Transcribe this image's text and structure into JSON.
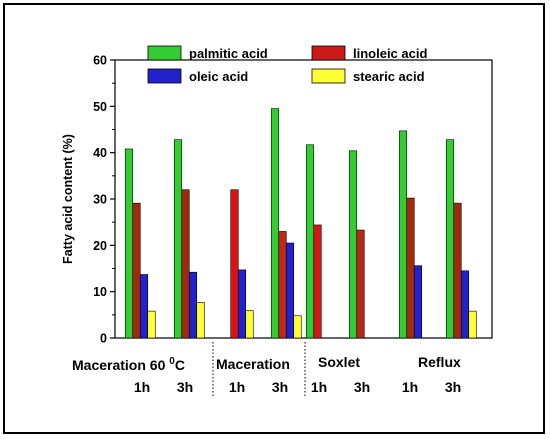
{
  "chart_data": {
    "type": "bar",
    "ylabel": "Fatty acid content (%)",
    "ylim": [
      0,
      60
    ],
    "yticks": [
      0,
      10,
      20,
      30,
      40,
      50,
      60
    ],
    "legend_position": "top",
    "categories": [
      "1h",
      "3h",
      "1h",
      "3h",
      "1h",
      "3h",
      "1h",
      "3h"
    ],
    "groups": [
      {
        "label": "Maceration 60",
        "superscript": "0",
        "unit": "C",
        "span": [
          0,
          1
        ]
      },
      {
        "label": "Maceration",
        "span": [
          2,
          3
        ]
      },
      {
        "label": "Soxlet",
        "span": [
          4,
          5
        ]
      },
      {
        "label": "Reflux",
        "span": [
          6,
          7
        ]
      }
    ],
    "series": [
      {
        "name": "palmitic acid",
        "color": "#33cc33",
        "values": [
          40.8,
          42.8,
          null,
          49.5,
          41.7,
          40.4,
          44.7,
          42.8
        ]
      },
      {
        "name": "linoleic acid",
        "color": "#cc1a1a",
        "values": [
          29.1,
          32.0,
          32.0,
          23.0,
          24.4,
          23.3,
          30.2,
          29.1
        ]
      },
      {
        "name": "oleic acid",
        "color": "#2222cc",
        "values": [
          13.7,
          14.2,
          14.7,
          20.5,
          null,
          null,
          15.6,
          14.5
        ]
      },
      {
        "name": "stearic acid",
        "color": "#ffff33",
        "values": [
          5.8,
          7.7,
          5.9,
          4.8,
          null,
          null,
          null,
          5.8
        ]
      }
    ],
    "series_shades": {
      "linoleic acid": [
        "#a02a10",
        "#a02a10",
        "#dd1111",
        "#c0281a",
        "#d41818",
        "#b82818",
        "#a52a10",
        "#a02a10"
      ]
    },
    "grid": false
  }
}
